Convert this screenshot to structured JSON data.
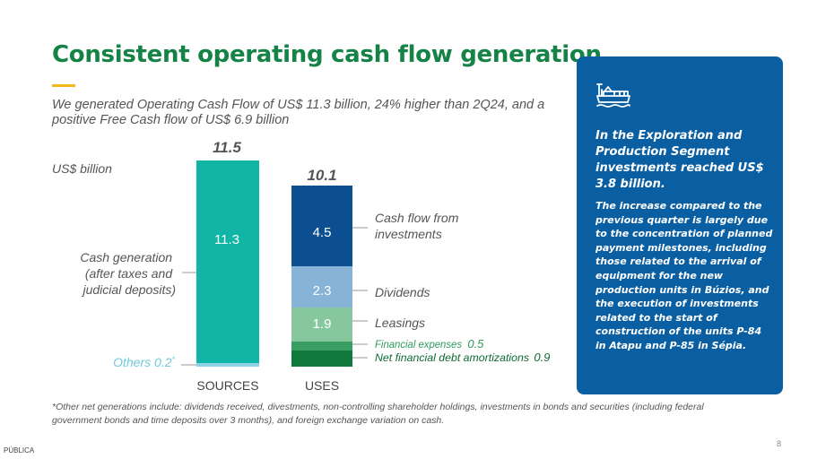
{
  "header": {
    "title": "Consistent operating cash flow generation",
    "subtitle": "We generated Operating Cash Flow of US$ 11.3 billion, 24% higher than 2Q24, and a positive Free Cash flow of US$ 6.9 billion"
  },
  "chart_data": {
    "type": "bar",
    "stacked": true,
    "unit_label": "US$ billion",
    "ylim": [
      0,
      11.5
    ],
    "categories": [
      "SOURCES",
      "USES"
    ],
    "totals": [
      11.5,
      10.1
    ],
    "series": [
      {
        "bar": "SOURCES",
        "segments": [
          {
            "name": "Others",
            "value": 0.2,
            "label": "Others 0.2*",
            "color": "#8fd3e8"
          },
          {
            "name": "Cash generation (after taxes and judicial deposits)",
            "value": 11.3,
            "label": "11.3",
            "color": "#10b5a5"
          }
        ]
      },
      {
        "bar": "USES",
        "segments": [
          {
            "name": "Net financial debt amortizations",
            "value": 0.9,
            "label": "",
            "color": "#0f7a3c"
          },
          {
            "name": "Financial expenses",
            "value": 0.5,
            "label": "",
            "color": "#3a9e63"
          },
          {
            "name": "Leasings",
            "value": 1.9,
            "label": "1.9",
            "color": "#87c79d"
          },
          {
            "name": "Dividends",
            "value": 2.3,
            "label": "2.3",
            "color": "#86b3d6"
          },
          {
            "name": "Cash flow from investments",
            "value": 4.5,
            "label": "4.5",
            "color": "#0b4f91"
          }
        ]
      }
    ],
    "annotations": {
      "cash_generation": [
        "Cash generation",
        "(after taxes and",
        "judicial deposits)"
      ],
      "others_label": "Others 0.2",
      "others_mark": "*",
      "investments": [
        "Cash flow from",
        "investments"
      ],
      "dividends": "Dividends",
      "leasings": "Leasings",
      "financial_expenses": "Financial expenses",
      "financial_expenses_value": "0.5",
      "net_debt": "Net financial debt amortizations",
      "net_debt_value": "0.9"
    }
  },
  "panel": {
    "icon": "oil-platform-icon",
    "heading": "In the Exploration and Production Segment investments reached US$ 3.8 billion.",
    "body": "The increase compared to the previous quarter is largely due to the concentration of planned payment milestones, including those related to the arrival of equipment for the new production units in Búzios, and the execution of investments related to the start of construction of the units P-84 in Atapu and P-85 in Sépia."
  },
  "footnote": "*Other net generations include: dividends received, divestments, non-controlling shareholder holdings, investments in bonds and securities (including federal government bonds and time deposits over 3 months), and foreign exchange variation on cash.",
  "page_number": "8",
  "classification": "PÚBLICA",
  "colors": {
    "title": "#158246",
    "accent": "#f2b71a",
    "panel": "#0a5fa3"
  }
}
